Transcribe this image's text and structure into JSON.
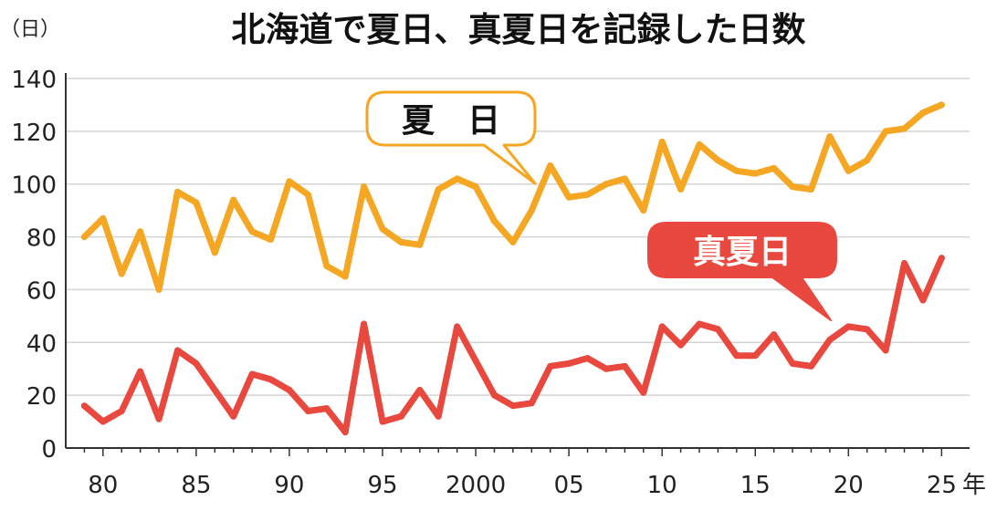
{
  "chart_data": {
    "type": "line",
    "title": "北海道で夏日、真夏日を記録した日数",
    "yunit": "（日）",
    "xunit": "年",
    "ylim": [
      0,
      140
    ],
    "yticks": [
      0,
      20,
      40,
      60,
      80,
      100,
      120,
      140
    ],
    "xticks": [
      {
        "year": 1980,
        "label": "80"
      },
      {
        "year": 1985,
        "label": "85"
      },
      {
        "year": 1990,
        "label": "90"
      },
      {
        "year": 1995,
        "label": "95"
      },
      {
        "year": 2000,
        "label": "2000"
      },
      {
        "year": 2005,
        "label": "05"
      },
      {
        "year": 2010,
        "label": "10"
      },
      {
        "year": 2015,
        "label": "15"
      },
      {
        "year": 2020,
        "label": "20"
      },
      {
        "year": 2025,
        "label": "25"
      }
    ],
    "grid": true,
    "x": [
      1979,
      1980,
      1981,
      1982,
      1983,
      1984,
      1985,
      1986,
      1987,
      1988,
      1989,
      1990,
      1991,
      1992,
      1993,
      1994,
      1995,
      1996,
      1997,
      1998,
      1999,
      2000,
      2001,
      2002,
      2003,
      2004,
      2005,
      2006,
      2007,
      2008,
      2009,
      2010,
      2011,
      2012,
      2013,
      2014,
      2015,
      2016,
      2017,
      2018,
      2019,
      2020,
      2021,
      2022,
      2023,
      2024,
      2025
    ],
    "series": [
      {
        "name": "夏　日",
        "color": "#f5a623",
        "values": [
          80,
          87,
          66,
          82,
          60,
          97,
          93,
          74,
          94,
          82,
          79,
          101,
          96,
          69,
          65,
          99,
          83,
          78,
          77,
          98,
          102,
          99,
          86,
          78,
          90,
          107,
          95,
          96,
          100,
          102,
          90,
          116,
          98,
          115,
          109,
          105,
          104,
          106,
          99,
          98,
          118,
          105,
          109,
          120,
          121,
          127,
          130
        ]
      },
      {
        "name": "真夏日",
        "color": "#e8483e",
        "values": [
          16,
          10,
          14,
          29,
          11,
          37,
          32,
          22,
          12,
          28,
          26,
          22,
          14,
          15,
          6,
          47,
          10,
          12,
          22,
          12,
          46,
          33,
          20,
          16,
          17,
          31,
          32,
          34,
          30,
          31,
          21,
          46,
          39,
          47,
          45,
          35,
          35,
          43,
          32,
          31,
          41,
          46,
          45,
          37,
          70,
          56,
          72
        ]
      }
    ]
  }
}
